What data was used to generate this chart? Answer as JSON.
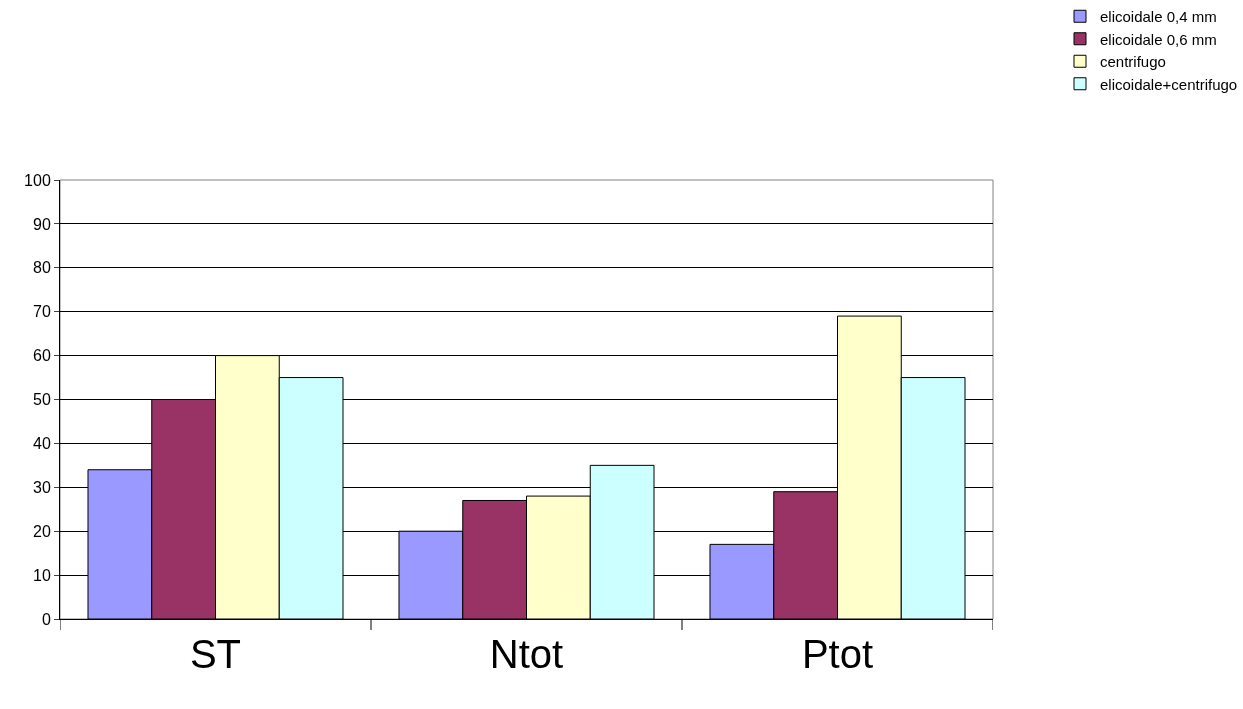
{
  "chart_data": {
    "type": "bar",
    "categories": [
      "ST",
      "Ntot",
      "Ptot"
    ],
    "series": [
      {
        "name": "elicoidale 0,4 mm",
        "color": "#9999ff",
        "values": [
          34,
          20,
          17
        ]
      },
      {
        "name": "elicoidale 0,6 mm",
        "color": "#993366",
        "values": [
          50,
          27,
          29
        ]
      },
      {
        "name": "centrifugo",
        "color": "#ffffcc",
        "values": [
          60,
          28,
          69
        ]
      },
      {
        "name": "elicoidale+centrifugo",
        "color": "#ccffff",
        "values": [
          55,
          35,
          55
        ]
      }
    ],
    "ylim": [
      0,
      100
    ],
    "yticks": [
      0,
      10,
      20,
      30,
      40,
      50,
      60,
      70,
      80,
      90,
      100
    ],
    "grid": "y",
    "legend": "top right"
  }
}
